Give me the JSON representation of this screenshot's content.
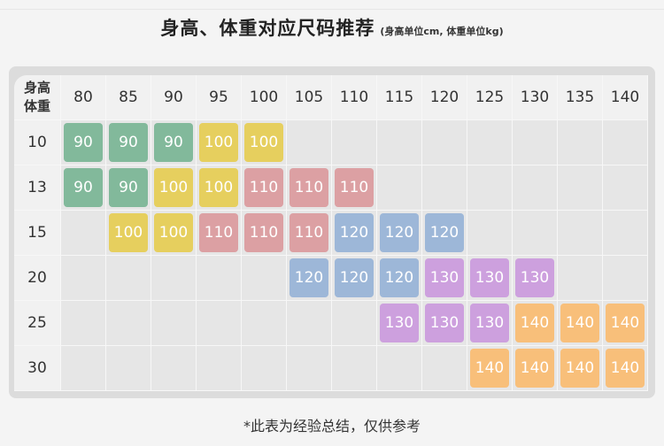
{
  "title": {
    "main": "身高、体重对应尺码推荐",
    "sub": "(身高单位cm, 体重单位kg)"
  },
  "table": {
    "corner_top": "身高",
    "corner_bottom": "体重",
    "heights": [
      "80",
      "85",
      "90",
      "95",
      "100",
      "105",
      "110",
      "115",
      "120",
      "125",
      "130",
      "135",
      "140"
    ],
    "weights": [
      "10",
      "13",
      "15",
      "20",
      "25",
      "30"
    ],
    "rows": [
      [
        "90",
        "90",
        "90",
        "100",
        "100",
        "",
        "",
        "",
        "",
        "",
        "",
        "",
        ""
      ],
      [
        "90",
        "90",
        "100",
        "100",
        "110",
        "110",
        "110",
        "",
        "",
        "",
        "",
        "",
        ""
      ],
      [
        "",
        "100",
        "100",
        "110",
        "110",
        "110",
        "120",
        "120",
        "120",
        "",
        "",
        "",
        ""
      ],
      [
        "",
        "",
        "",
        "",
        "",
        "120",
        "120",
        "120",
        "130",
        "130",
        "130",
        "",
        ""
      ],
      [
        "",
        "",
        "",
        "",
        "",
        "",
        "",
        "130",
        "130",
        "130",
        "140",
        "140",
        "140"
      ],
      [
        "",
        "",
        "",
        "",
        "",
        "",
        "",
        "",
        "",
        "140",
        "140",
        "140",
        "140"
      ]
    ]
  },
  "size_colors": {
    "90": "#82b99b",
    "100": "#e6cf5e",
    "110": "#dca0a3",
    "120": "#9db7d8",
    "130": "#cda0de",
    "140": "#f8bf7a"
  },
  "note": "*此表为经验总结，仅供参考"
}
